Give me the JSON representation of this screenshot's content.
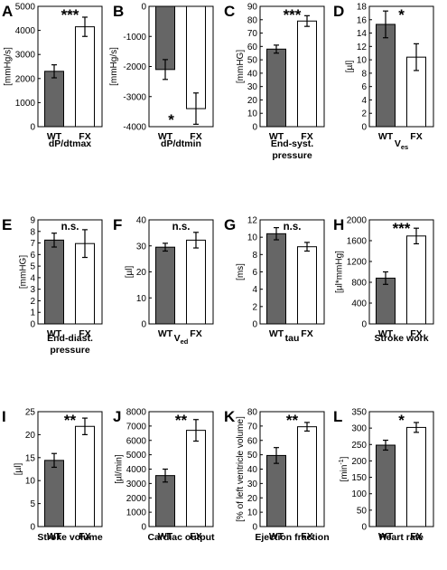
{
  "chart_data": [
    {
      "letter": "A",
      "type": "bar",
      "categories": [
        "WT",
        "FX"
      ],
      "values": [
        2300,
        4150
      ],
      "errors": [
        270,
        400
      ],
      "ylabel": "[mmHg/s]",
      "ylim": [
        0,
        5000
      ],
      "yticks": [
        "0",
        "1000",
        "2000",
        "3000",
        "4000",
        "5000"
      ],
      "caption": [
        "dP/dtmax"
      ],
      "significance": "***"
    },
    {
      "letter": "B",
      "type": "bar",
      "categories": [
        "WT",
        "FX"
      ],
      "values": [
        -2100,
        -3400
      ],
      "errors": [
        330,
        520
      ],
      "ylabel": "[mmHg/s]",
      "ylim": [
        -4000,
        0
      ],
      "yticks": [
        "-4000",
        "-3000",
        "-2000",
        "-1000",
        "0"
      ],
      "caption": [
        "dP/dtmin"
      ],
      "significance": "*"
    },
    {
      "letter": "C",
      "type": "bar",
      "categories": [
        "WT",
        "FX"
      ],
      "values": [
        58,
        79
      ],
      "errors": [
        3,
        4
      ],
      "ylabel": "[mmHG]",
      "ylim": [
        0,
        90
      ],
      "yticks": [
        "0",
        "10",
        "20",
        "30",
        "40",
        "50",
        "60",
        "70",
        "80",
        "90"
      ],
      "caption": [
        "End-syst.",
        "pressure"
      ],
      "significance": "***"
    },
    {
      "letter": "D",
      "type": "bar",
      "categories": [
        "WT",
        "FX"
      ],
      "values": [
        15.3,
        10.4
      ],
      "errors": [
        2.0,
        2.0
      ],
      "ylabel": "[µl]",
      "ylim": [
        0,
        18
      ],
      "yticks": [
        "0",
        "2",
        "4",
        "6",
        "8",
        "10",
        "12",
        "14",
        "16",
        "18"
      ],
      "caption": [
        "V"
      ],
      "caption_sub": "es",
      "significance": "*"
    },
    {
      "letter": "E",
      "type": "bar",
      "categories": [
        "WT",
        "FX"
      ],
      "values": [
        7.25,
        6.95
      ],
      "errors": [
        0.6,
        1.2
      ],
      "ylabel": "[mmHG]",
      "ylim": [
        0,
        9
      ],
      "yticks": [
        "0",
        "1",
        "2",
        "3",
        "4",
        "5",
        "6",
        "7",
        "8",
        "9"
      ],
      "caption": [
        "End-diast.",
        "pressure"
      ],
      "significance": "n.s."
    },
    {
      "letter": "F",
      "type": "bar",
      "categories": [
        "WT",
        "FX"
      ],
      "values": [
        29.5,
        32.2
      ],
      "errors": [
        1.5,
        3.0
      ],
      "ylabel": "[µl]",
      "ylim": [
        0,
        40
      ],
      "yticks": [
        "0",
        "10",
        "20",
        "30",
        "40"
      ],
      "caption": [
        "V"
      ],
      "caption_sub": "ed",
      "significance": "n.s."
    },
    {
      "letter": "G",
      "type": "bar",
      "categories": [
        "WT",
        "FX"
      ],
      "values": [
        10.4,
        8.9
      ],
      "errors": [
        0.7,
        0.5
      ],
      "ylabel": "[ms]",
      "ylim": [
        0,
        12
      ],
      "yticks": [
        "0",
        "2",
        "4",
        "6",
        "8",
        "10",
        "12"
      ],
      "caption": [
        "tau"
      ],
      "significance": "n.s."
    },
    {
      "letter": "H",
      "type": "bar",
      "categories": [
        "WT",
        "FX"
      ],
      "values": [
        880,
        1690
      ],
      "errors": [
        120,
        150
      ],
      "ylabel": "[µl*mmHg]",
      "ylim": [
        0,
        2000
      ],
      "yticks": [
        "0",
        "400",
        "800",
        "1200",
        "1600",
        "2000"
      ],
      "caption": [
        "Stroke work"
      ],
      "significance": "***"
    },
    {
      "letter": "I",
      "type": "bar",
      "categories": [
        "WT",
        "FX"
      ],
      "values": [
        14.4,
        21.8
      ],
      "errors": [
        1.5,
        1.8
      ],
      "ylabel": "[µl]",
      "ylim": [
        0,
        25
      ],
      "yticks": [
        "0",
        "5",
        "10",
        "15",
        "20",
        "25"
      ],
      "caption": [
        "Stroke volume"
      ],
      "significance": "**"
    },
    {
      "letter": "J",
      "type": "bar",
      "categories": [
        "WT",
        "FX"
      ],
      "values": [
        3550,
        6700
      ],
      "errors": [
        450,
        750
      ],
      "ylabel": "[µl/min]",
      "ylim": [
        0,
        8000
      ],
      "yticks": [
        "0",
        "1000",
        "2000",
        "3000",
        "4000",
        "5000",
        "6000",
        "7000",
        "8000"
      ],
      "caption": [
        "Cardiac output"
      ],
      "significance": "**"
    },
    {
      "letter": "K",
      "type": "bar",
      "categories": [
        "WT",
        "FX"
      ],
      "values": [
        49.5,
        69.5
      ],
      "errors": [
        5.5,
        3.0
      ],
      "ylabel": "[% of left ventricle volume]",
      "ylim": [
        0,
        80
      ],
      "yticks": [
        "0",
        "10",
        "20",
        "30",
        "40",
        "50",
        "60",
        "70",
        "80"
      ],
      "caption": [
        "Ejection fraction"
      ],
      "significance": "**"
    },
    {
      "letter": "L",
      "type": "bar",
      "categories": [
        "WT",
        "FX"
      ],
      "values": [
        248,
        302
      ],
      "errors": [
        15,
        15
      ],
      "ylabel": "[min",
      "ylabel_sup": "-1",
      "ylabel_end": "]",
      "ylim": [
        0,
        350
      ],
      "yticks": [
        "0",
        "50",
        "100",
        "150",
        "200",
        "250",
        "300",
        "350"
      ],
      "caption": [
        "Heart rate"
      ],
      "significance": "*"
    }
  ],
  "colors": {
    "wt_bar": "#666666",
    "fx_bar": "#ffffff",
    "outline": "#000000"
  }
}
